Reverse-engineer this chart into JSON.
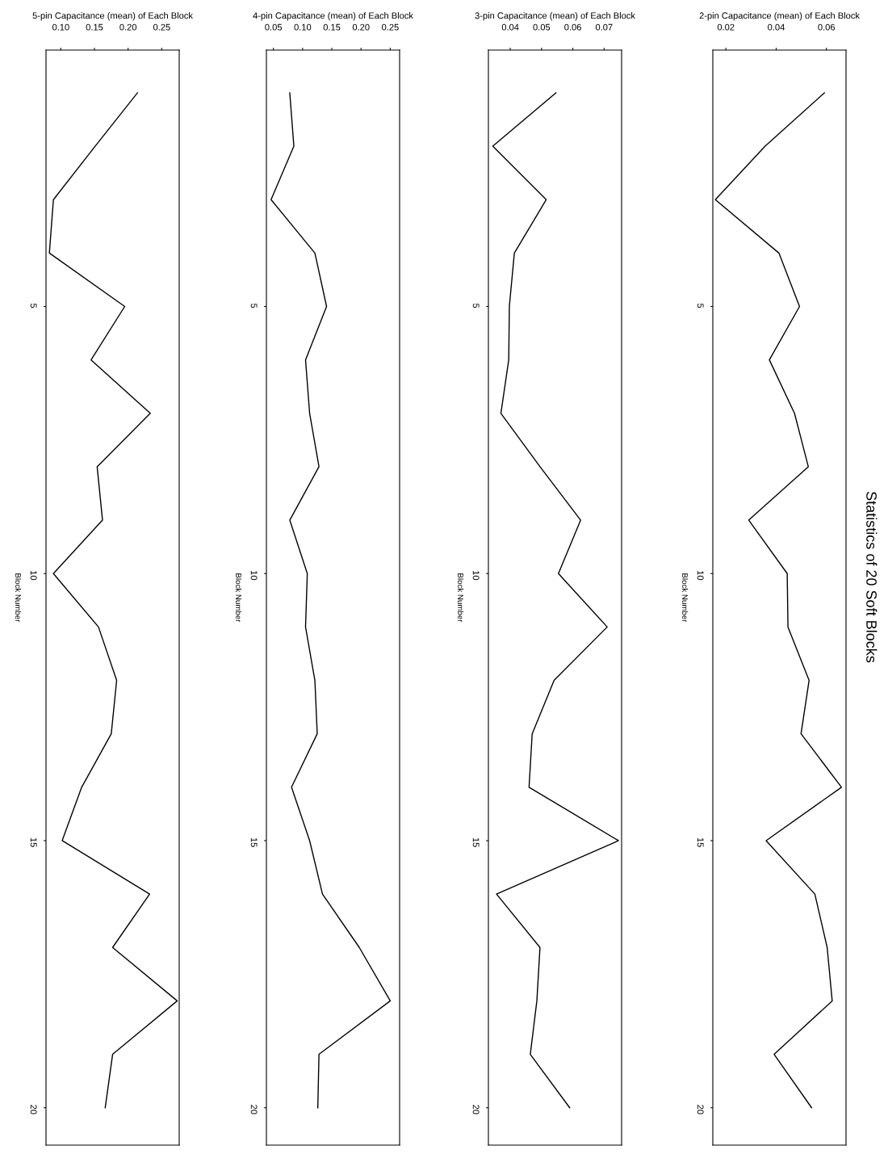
{
  "chart_data": [
    {
      "type": "line",
      "orientation": "horizontal",
      "title": "5-pin Capacitance (mean) of Each Block",
      "ylabel": "Block Number",
      "color": "#000000",
      "grid": false,
      "marker": "none",
      "line_style": "solid",
      "x": [
        1,
        2,
        3,
        4,
        5,
        6,
        7,
        8,
        9,
        10,
        11,
        12,
        13,
        14,
        15,
        16,
        17,
        18,
        19,
        20
      ],
      "values": [
        0.214,
        0.151,
        0.089,
        0.083,
        0.195,
        0.145,
        0.233,
        0.154,
        0.162,
        0.089,
        0.156,
        0.183,
        0.175,
        0.131,
        0.102,
        0.232,
        0.177,
        0.273,
        0.177,
        0.166
      ],
      "xlim": [
        0.078,
        0.276
      ],
      "xticks": [
        {
          "value": 0.1,
          "label": "0.10"
        },
        {
          "value": 0.15,
          "label": "0.15"
        },
        {
          "value": 0.2,
          "label": "0.20"
        },
        {
          "value": 0.25,
          "label": "0.25"
        }
      ],
      "ylim": [
        20.7,
        0.2
      ],
      "yticks": [
        5,
        10,
        15,
        20
      ]
    },
    {
      "type": "line",
      "orientation": "horizontal",
      "title": "4-pin Capacitance (mean) of Each Block",
      "ylabel": "Block Number",
      "color": "#000000",
      "grid": false,
      "marker": "none",
      "line_style": "solid",
      "x": [
        1,
        2,
        3,
        4,
        5,
        6,
        7,
        8,
        9,
        10,
        11,
        12,
        13,
        14,
        15,
        16,
        17,
        18,
        19,
        20
      ],
      "values": [
        0.078,
        0.085,
        0.046,
        0.121,
        0.141,
        0.105,
        0.112,
        0.128,
        0.078,
        0.108,
        0.105,
        0.121,
        0.125,
        0.081,
        0.112,
        0.134,
        0.197,
        0.25,
        0.128,
        0.126
      ],
      "xlim": [
        0.038,
        0.266
      ],
      "xticks": [
        {
          "value": 0.05,
          "label": "0.05"
        },
        {
          "value": 0.1,
          "label": "0.10"
        },
        {
          "value": 0.15,
          "label": "0.15"
        },
        {
          "value": 0.2,
          "label": "0.20"
        },
        {
          "value": 0.25,
          "label": "0.25"
        }
      ],
      "ylim": [
        20.7,
        0.2
      ],
      "yticks": [
        5,
        10,
        15,
        20
      ]
    },
    {
      "type": "line",
      "orientation": "horizontal",
      "title": "3-pin Capacitance (mean) of Each Block",
      "ylabel": "Block Number",
      "color": "#000000",
      "grid": false,
      "marker": "none",
      "line_style": "solid",
      "x": [
        1,
        2,
        3,
        4,
        5,
        6,
        7,
        8,
        9,
        10,
        11,
        12,
        13,
        14,
        15,
        16,
        17,
        18,
        19,
        20
      ],
      "values": [
        0.0546,
        0.0344,
        0.0515,
        0.0413,
        0.0397,
        0.0395,
        0.037,
        0.0495,
        0.0625,
        0.0554,
        0.071,
        0.054,
        0.047,
        0.046,
        0.0746,
        0.0356,
        0.0495,
        0.0485,
        0.0464,
        0.059
      ],
      "xlim": [
        0.033,
        0.0756
      ],
      "xticks": [
        {
          "value": 0.04,
          "label": "0.04"
        },
        {
          "value": 0.05,
          "label": "0.05"
        },
        {
          "value": 0.06,
          "label": "0.06"
        },
        {
          "value": 0.07,
          "label": "0.07"
        }
      ],
      "ylim": [
        20.7,
        0.2
      ],
      "yticks": [
        5,
        10,
        15,
        20
      ]
    },
    {
      "type": "line",
      "orientation": "horizontal",
      "title": "2-pin Capacitance (mean) of Each Block",
      "ylabel": "Block Number",
      "color": "#000000",
      "grid": false,
      "marker": "none",
      "line_style": "solid",
      "x": [
        1,
        2,
        3,
        4,
        5,
        6,
        7,
        8,
        9,
        10,
        11,
        12,
        13,
        14,
        15,
        16,
        17,
        18,
        19,
        20
      ],
      "values": [
        0.0592,
        0.0356,
        0.0158,
        0.0411,
        0.0493,
        0.0373,
        0.0473,
        0.0528,
        0.0291,
        0.0444,
        0.0447,
        0.0531,
        0.0499,
        0.066,
        0.036,
        0.0554,
        0.0603,
        0.0623,
        0.0392,
        0.0541
      ],
      "xlim": [
        0.0148,
        0.0678
      ],
      "xticks": [
        {
          "value": 0.02,
          "label": "0.02"
        },
        {
          "value": 0.04,
          "label": "0.04"
        },
        {
          "value": 0.06,
          "label": "0.06"
        }
      ],
      "ylim": [
        20.7,
        0.2
      ],
      "yticks": [
        5,
        10,
        15,
        20
      ],
      "annotations": [
        "Statistics of 20 Soft Blocks"
      ]
    }
  ]
}
